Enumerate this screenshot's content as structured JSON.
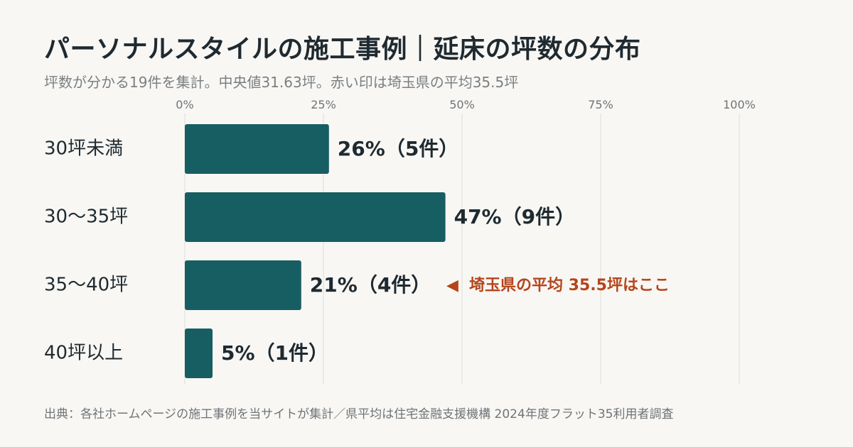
{
  "header": {
    "title": "パーソナルスタイルの施工事例｜延床の坪数の分布",
    "subtitle": "坪数が分かる19件を集計。中央値31.63坪。赤い印は埼玉県の平均35.5坪"
  },
  "footer": {
    "source": "出典：各社ホームページの施工事例を当サイトが集計／県平均は住宅金融支援機構 2024年度フラット35利用者調査"
  },
  "colors": {
    "bar": "#175e63",
    "annotation": "#b5451b",
    "grid": "#dcdcd7",
    "background": "#f8f7f4"
  },
  "chart_data": {
    "type": "bar",
    "orientation": "horizontal",
    "categories": [
      "30坪未満",
      "30〜35坪",
      "35〜40坪",
      "40坪以上"
    ],
    "values": [
      26,
      47,
      21,
      5
    ],
    "counts": [
      5,
      9,
      4,
      1
    ],
    "data_labels": [
      "26%（5件）",
      "47%（9件）",
      "21%（4件）",
      "5%（1件）"
    ],
    "xlim": [
      0,
      100
    ],
    "xticks": [
      0,
      25,
      50,
      75,
      100
    ],
    "xtick_labels": [
      "0%",
      "25%",
      "50%",
      "75%",
      "100%"
    ],
    "grid": true,
    "annotation": {
      "category": "35〜40坪",
      "text": "埼玉県の平均 35.5坪はここ",
      "marker": "◀"
    }
  }
}
